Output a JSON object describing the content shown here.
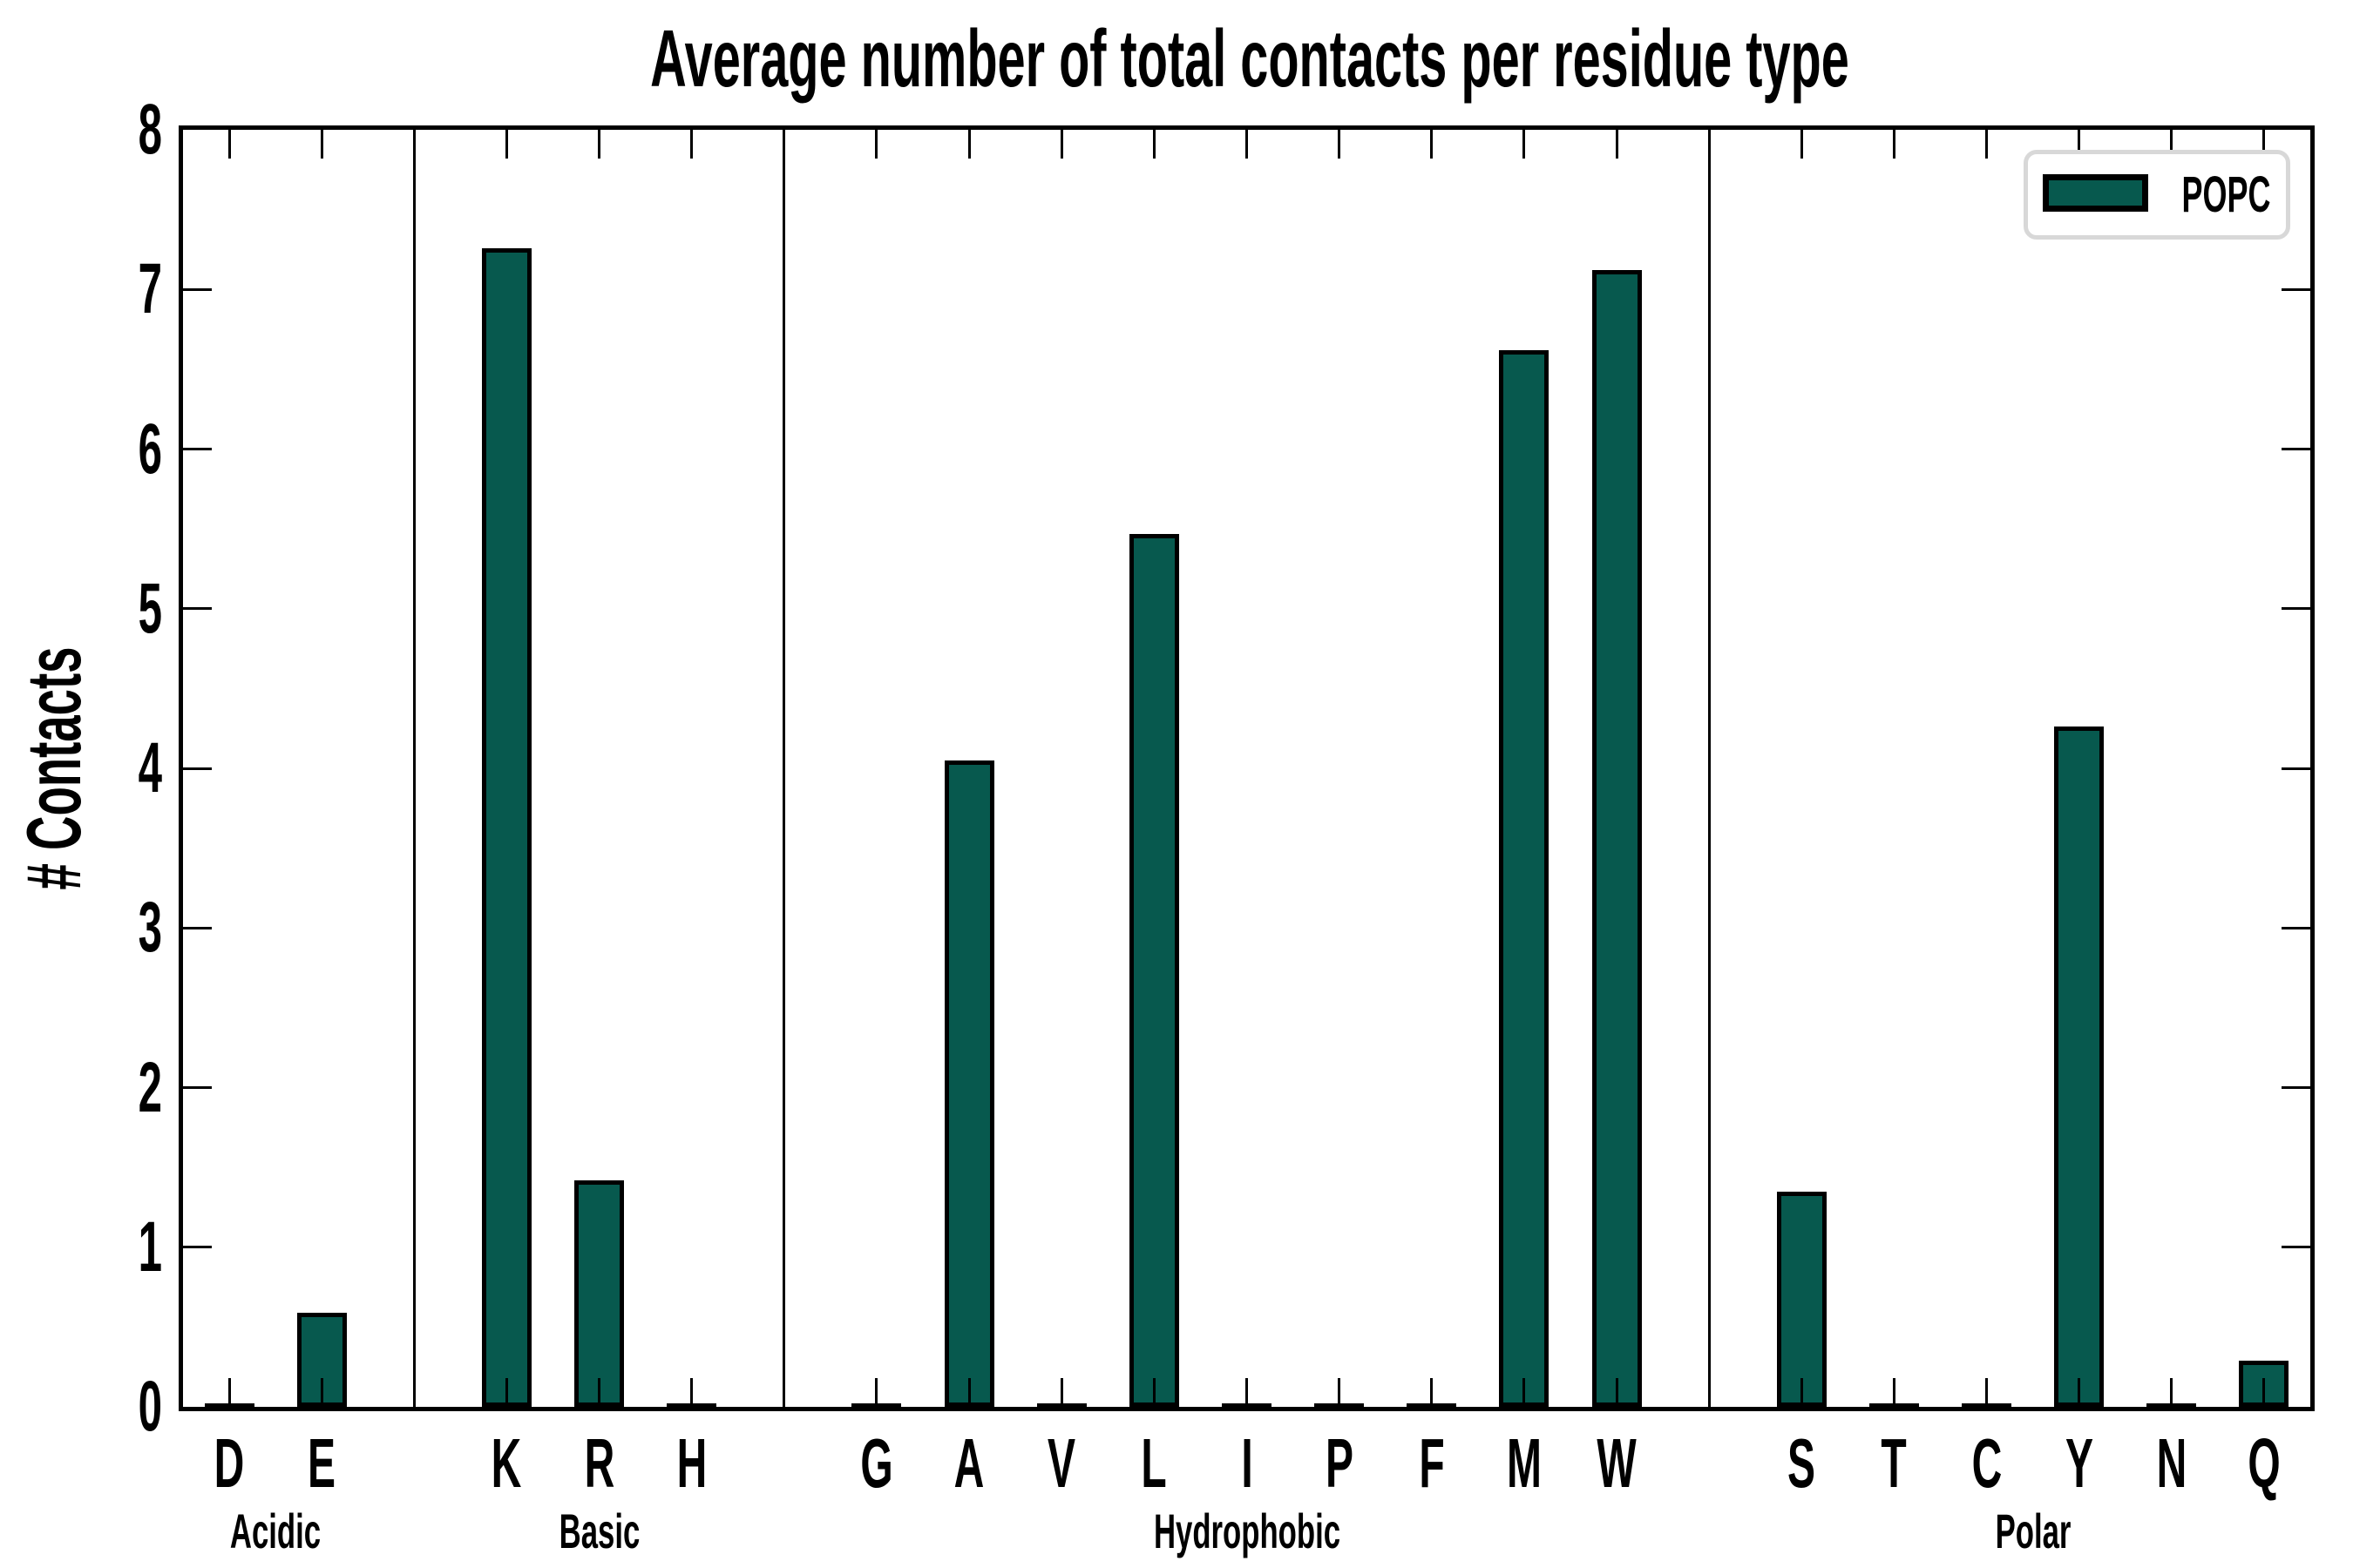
{
  "chart_data": {
    "type": "bar",
    "title": "Average number of total contacts per residue type",
    "xlabel": "",
    "ylabel": "# Contacts",
    "ylim": [
      0,
      8
    ],
    "yticks": [
      0,
      1,
      2,
      3,
      4,
      5,
      6,
      7,
      8
    ],
    "grid": false,
    "tick_direction": "in",
    "bar_color": "#07594E",
    "bar_edge_color": "#000000",
    "axis_color": "#000000",
    "legend": {
      "position": "upper right",
      "entries": [
        {
          "label": "POPC",
          "color": "#07594E"
        }
      ]
    },
    "groups": [
      {
        "label": "Acidic",
        "categories": [
          "D",
          "E"
        ],
        "values": [
          0.01,
          0.59
        ]
      },
      {
        "label": "Basic",
        "categories": [
          "K",
          "R",
          "H"
        ],
        "values": [
          7.26,
          1.42,
          0.01
        ]
      },
      {
        "label": "Hydrophobic",
        "categories": [
          "G",
          "A",
          "V",
          "L",
          "I",
          "P",
          "F",
          "M",
          "W"
        ],
        "values": [
          0.01,
          4.05,
          0.01,
          5.47,
          0.01,
          0.01,
          0.01,
          6.62,
          7.12
        ]
      },
      {
        "label": "Polar",
        "categories": [
          "S",
          "T",
          "C",
          "Y",
          "N",
          "Q"
        ],
        "values": [
          1.35,
          0.01,
          0.01,
          4.26,
          0.01,
          0.29
        ]
      }
    ],
    "categories": [
      "D",
      "E",
      "K",
      "R",
      "H",
      "G",
      "A",
      "V",
      "L",
      "I",
      "P",
      "F",
      "M",
      "W",
      "S",
      "T",
      "C",
      "Y",
      "N",
      "Q"
    ],
    "values": [
      0.01,
      0.59,
      7.26,
      1.42,
      0.01,
      0.01,
      4.05,
      0.01,
      5.47,
      0.01,
      0.01,
      0.01,
      6.62,
      7.12,
      1.35,
      0.01,
      0.01,
      4.26,
      0.01,
      0.29
    ]
  }
}
